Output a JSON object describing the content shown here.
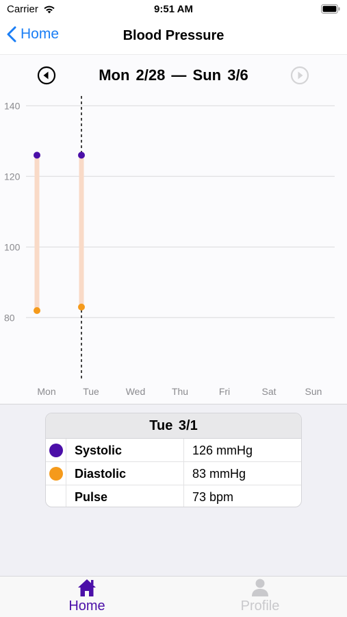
{
  "status_bar": {
    "carrier": "Carrier",
    "time": "9:51 AM",
    "icons": [
      "wifi-icon",
      "battery-icon"
    ]
  },
  "nav": {
    "back_label": "Home",
    "title": "Blood Pressure",
    "back_icon": "chevron-left-icon"
  },
  "week": {
    "range": "Mon 2/28 — Sun 3/6",
    "prev_icon": "circle-arrow-left-icon",
    "next_icon": "circle-arrow-right-icon",
    "next_enabled": false
  },
  "chart_data": {
    "type": "scatter",
    "y_ticks": [
      "140",
      "120",
      "100",
      "80"
    ],
    "categories": [
      "Mon",
      "Tue",
      "Wed",
      "Thu",
      "Fri",
      "Sat",
      "Sun"
    ],
    "ylim": [
      62,
      142
    ],
    "grid": true,
    "series": [
      {
        "name": "Systolic",
        "color": "#4b0fa8",
        "values": [
          126,
          126,
          null,
          null,
          null,
          null,
          null
        ]
      },
      {
        "name": "Diastolic",
        "color": "#f59a1b",
        "values": [
          82,
          83,
          null,
          null,
          null,
          null,
          null
        ]
      }
    ],
    "range_bar_color": "#f9dac7",
    "selected_category": "Tue"
  },
  "selected": {
    "date": "Tue 3/1",
    "rows": [
      {
        "label": "Systolic",
        "value": "126 mmHg",
        "dot_color": "#4b0fa8"
      },
      {
        "label": "Diastolic",
        "value": "83 mmHg",
        "dot_color": "#f59a1b"
      },
      {
        "label": "Pulse",
        "value": "73 bpm",
        "dot_color": ""
      }
    ]
  },
  "tabs": [
    {
      "label": "Home",
      "icon": "house-icon",
      "active": true,
      "color": "#4b0fa8"
    },
    {
      "label": "Profile",
      "icon": "person-icon",
      "active": false,
      "color": "#c9c9cc"
    }
  ]
}
